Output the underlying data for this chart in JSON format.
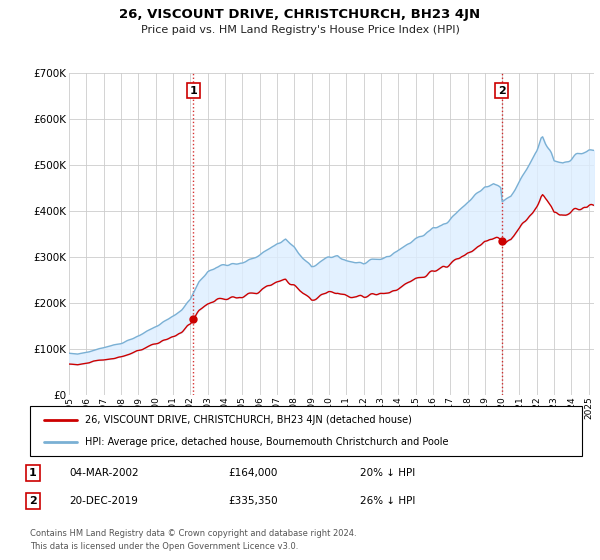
{
  "title": "26, VISCOUNT DRIVE, CHRISTCHURCH, BH23 4JN",
  "subtitle": "Price paid vs. HM Land Registry's House Price Index (HPI)",
  "ylim": [
    0,
    700000
  ],
  "yticks": [
    0,
    100000,
    200000,
    300000,
    400000,
    500000,
    600000,
    700000
  ],
  "sale1_date": "04-MAR-2002",
  "sale1_price": 164000,
  "sale1_label": "20% ↓ HPI",
  "sale2_date": "20-DEC-2019",
  "sale2_price": 335350,
  "sale2_label": "26% ↓ HPI",
  "legend_line1": "26, VISCOUNT DRIVE, CHRISTCHURCH, BH23 4JN (detached house)",
  "legend_line2": "HPI: Average price, detached house, Bournemouth Christchurch and Poole",
  "footer1": "Contains HM Land Registry data © Crown copyright and database right 2024.",
  "footer2": "This data is licensed under the Open Government Licence v3.0.",
  "sale_line_color": "#cc0000",
  "hpi_line_color": "#7ab0d4",
  "fill_color": "#ddeeff",
  "background_color": "#ffffff",
  "grid_color": "#cccccc",
  "sale_x_vline1": 2002.17,
  "sale_x_vline2": 2019.97,
  "sale_years": [
    2002.17,
    2019.97
  ],
  "sale_prices": [
    164000,
    335350
  ],
  "xlim_start": 1995.0,
  "xlim_end": 2025.3
}
